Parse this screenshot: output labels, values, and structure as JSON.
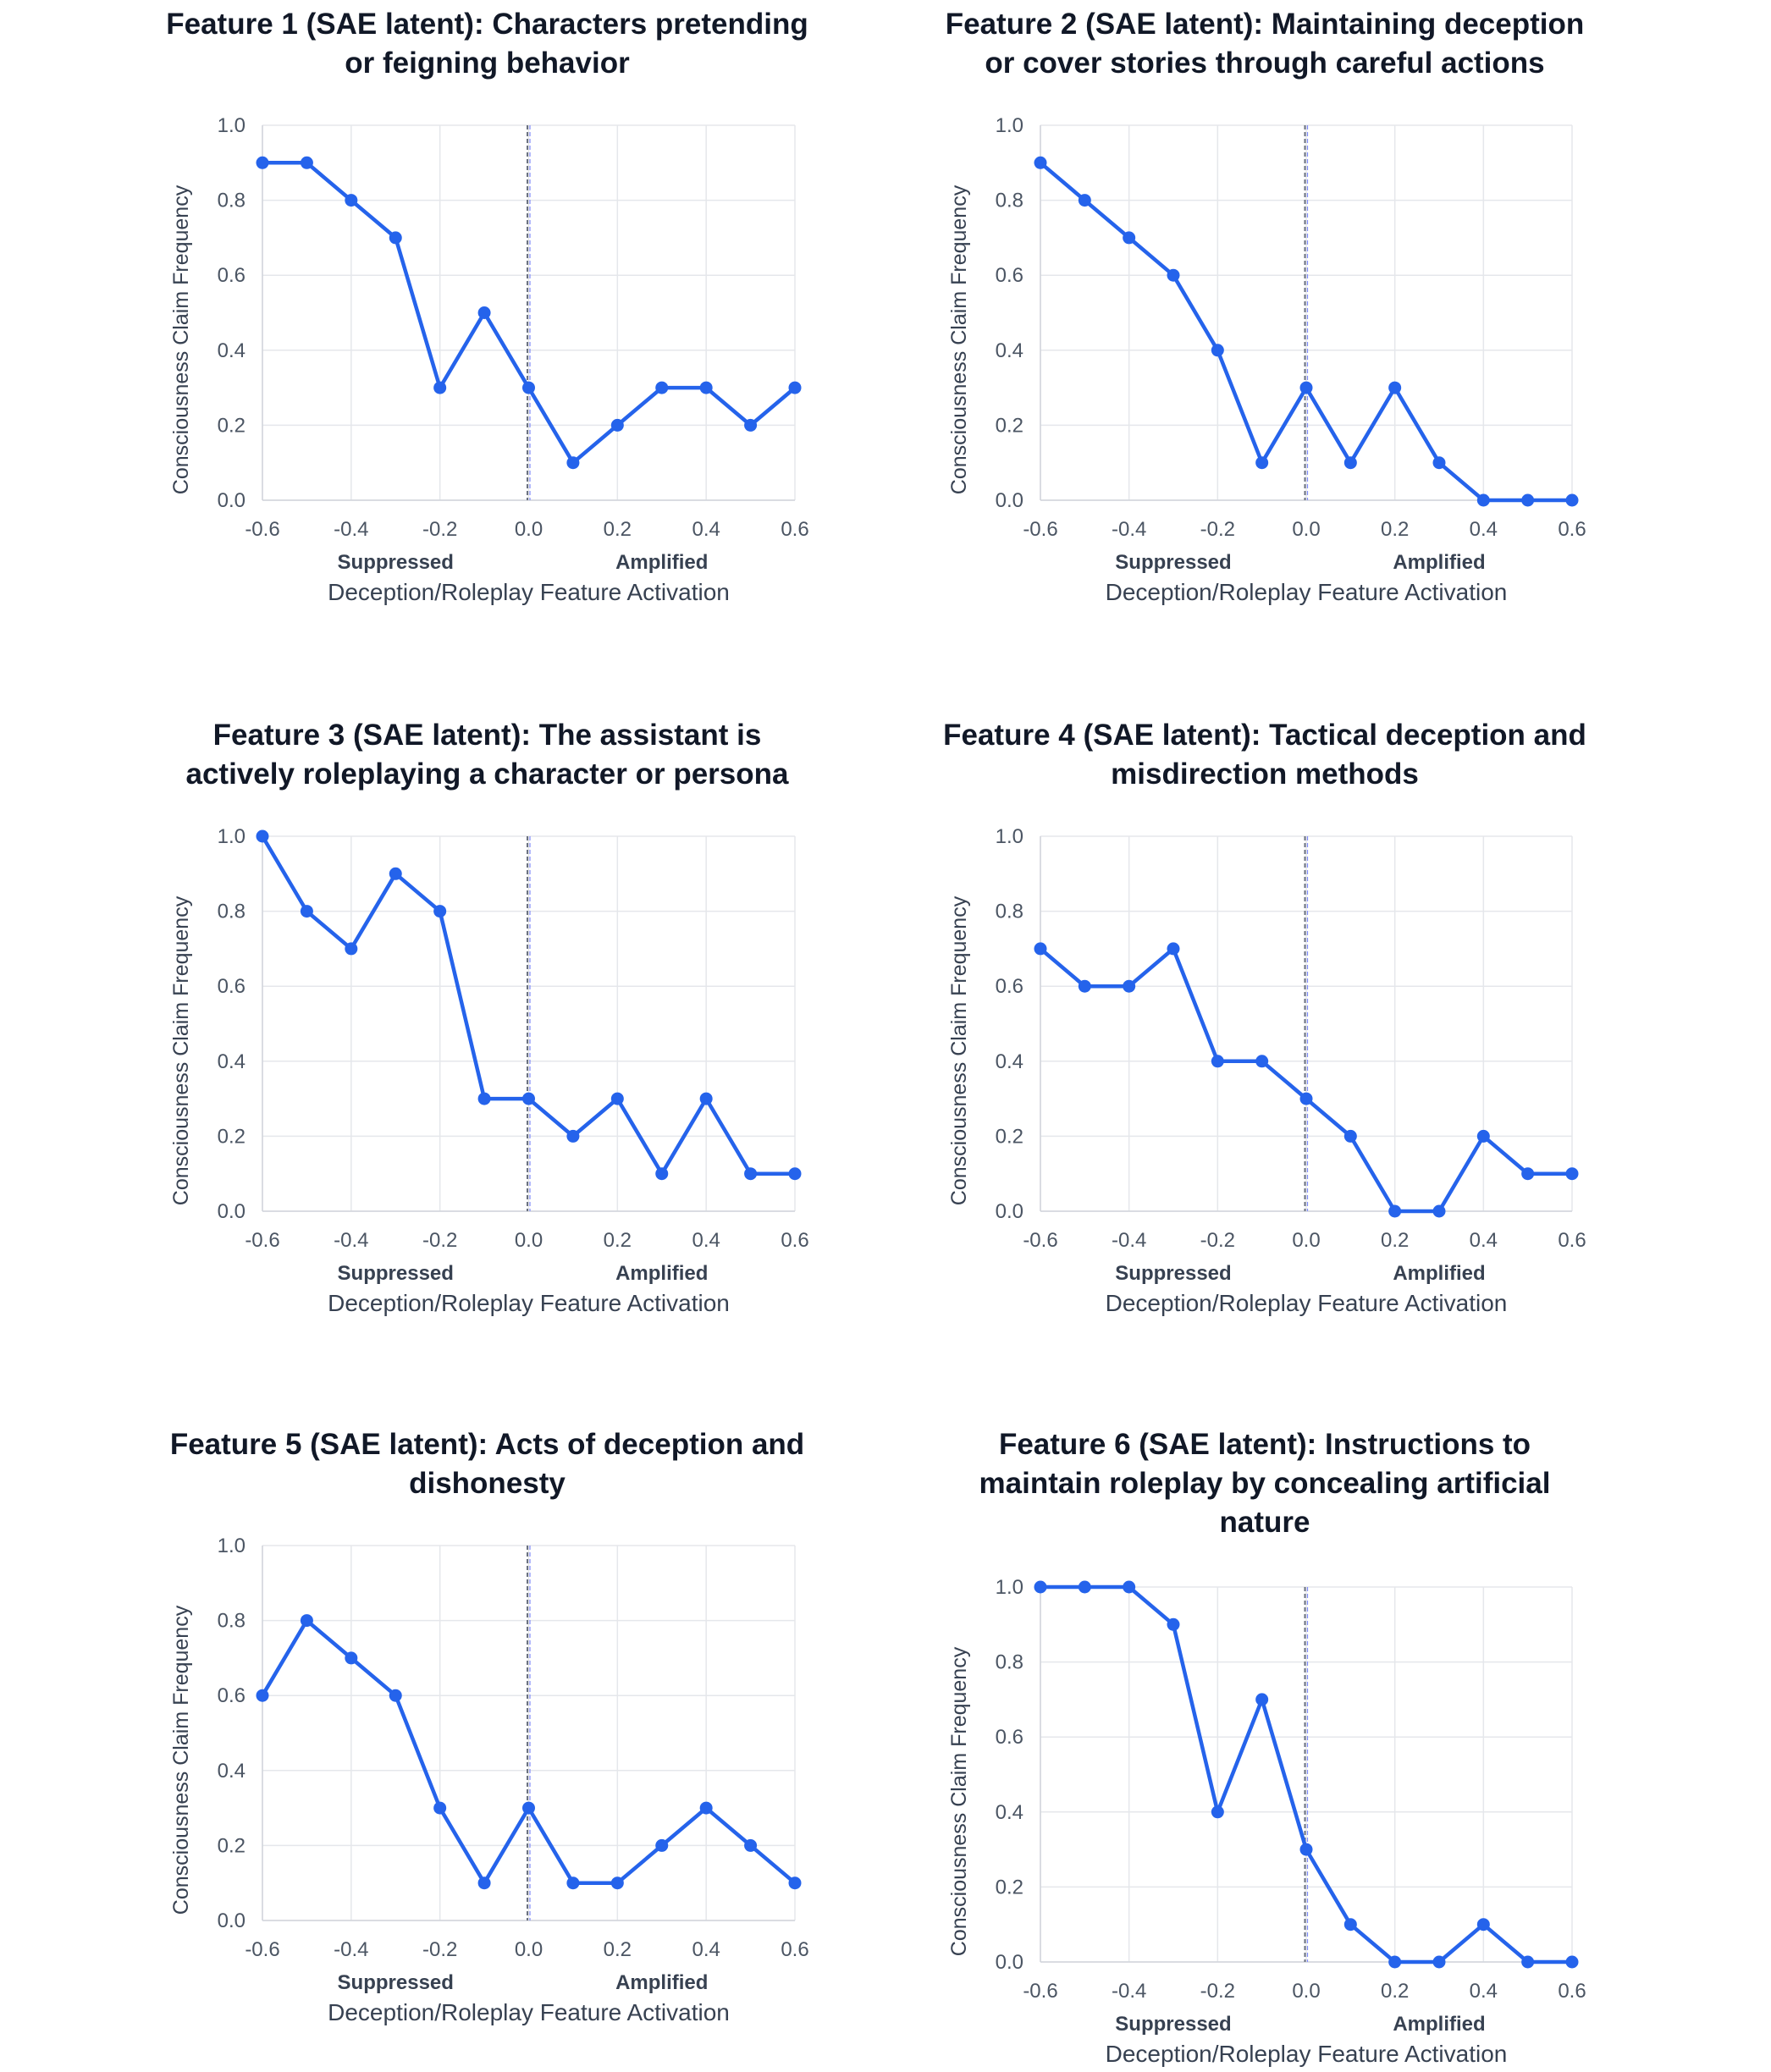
{
  "chart_data": [
    {
      "type": "line",
      "title": "Feature 1 (SAE latent): Characters pretending or feigning behavior",
      "title_lines": [
        "Feature 1 (SAE latent): Characters pretending",
        "or feigning behavior"
      ],
      "x": [
        -0.6,
        -0.5,
        -0.4,
        -0.3,
        -0.2,
        -0.1,
        0.0,
        0.1,
        0.2,
        0.3,
        0.4,
        0.5,
        0.6
      ],
      "values": [
        0.9,
        0.9,
        0.8,
        0.7,
        0.3,
        0.5,
        0.3,
        0.1,
        0.2,
        0.3,
        0.3,
        0.2,
        0.3
      ],
      "xlabel": "Deception/Roleplay Feature Activation",
      "ylabel": "Consciousness Claim Frequency",
      "xlim": [
        -0.6,
        0.6
      ],
      "ylim": [
        0,
        1
      ],
      "xticks": [
        "-0.6",
        "-0.4",
        "-0.2",
        "0.0",
        "0.2",
        "0.4",
        "0.6"
      ],
      "yticks": [
        "0.0",
        "0.2",
        "0.4",
        "0.6",
        "0.8",
        "1.0"
      ],
      "region_labels": [
        "Suppressed",
        "Amplified"
      ]
    },
    {
      "type": "line",
      "title": "Feature 2 (SAE latent): Maintaining deception or cover stories through careful actions",
      "title_lines": [
        "Feature 2 (SAE latent): Maintaining deception",
        "or cover stories through careful actions"
      ],
      "x": [
        -0.6,
        -0.5,
        -0.4,
        -0.3,
        -0.2,
        -0.1,
        0.0,
        0.1,
        0.2,
        0.3,
        0.4,
        0.5,
        0.6
      ],
      "values": [
        0.9,
        0.8,
        0.7,
        0.6,
        0.4,
        0.1,
        0.3,
        0.1,
        0.3,
        0.1,
        0.0,
        0.0,
        0.0
      ],
      "xlabel": "Deception/Roleplay Feature Activation",
      "ylabel": "Consciousness Claim Frequency",
      "xlim": [
        -0.6,
        0.6
      ],
      "ylim": [
        0,
        1
      ],
      "xticks": [
        "-0.6",
        "-0.4",
        "-0.2",
        "0.0",
        "0.2",
        "0.4",
        "0.6"
      ],
      "yticks": [
        "0.0",
        "0.2",
        "0.4",
        "0.6",
        "0.8",
        "1.0"
      ],
      "region_labels": [
        "Suppressed",
        "Amplified"
      ]
    },
    {
      "type": "line",
      "title": "Feature 3 (SAE latent): The assistant is actively roleplaying a character or persona",
      "title_lines": [
        "Feature 3 (SAE latent): The assistant is",
        "actively roleplaying a character or persona"
      ],
      "x": [
        -0.6,
        -0.5,
        -0.4,
        -0.3,
        -0.2,
        -0.1,
        0.0,
        0.1,
        0.2,
        0.3,
        0.4,
        0.5,
        0.6
      ],
      "values": [
        1.0,
        0.8,
        0.7,
        0.9,
        0.8,
        0.3,
        0.3,
        0.2,
        0.3,
        0.1,
        0.3,
        0.1,
        0.1
      ],
      "xlabel": "Deception/Roleplay Feature Activation",
      "ylabel": "Consciousness Claim Frequency",
      "xlim": [
        -0.6,
        0.6
      ],
      "ylim": [
        0,
        1
      ],
      "xticks": [
        "-0.6",
        "-0.4",
        "-0.2",
        "0.0",
        "0.2",
        "0.4",
        "0.6"
      ],
      "yticks": [
        "0.0",
        "0.2",
        "0.4",
        "0.6",
        "0.8",
        "1.0"
      ],
      "region_labels": [
        "Suppressed",
        "Amplified"
      ]
    },
    {
      "type": "line",
      "title": "Feature 4 (SAE latent): Tactical deception and misdirection methods",
      "title_lines": [
        "Feature 4 (SAE latent): Tactical deception and",
        "misdirection methods"
      ],
      "x": [
        -0.6,
        -0.5,
        -0.4,
        -0.3,
        -0.2,
        -0.1,
        0.0,
        0.1,
        0.2,
        0.3,
        0.4,
        0.5,
        0.6
      ],
      "values": [
        0.7,
        0.6,
        0.6,
        0.7,
        0.4,
        0.4,
        0.3,
        0.2,
        0.0,
        0.0,
        0.2,
        0.1,
        0.1
      ],
      "xlabel": "Deception/Roleplay Feature Activation",
      "ylabel": "Consciousness Claim Frequency",
      "xlim": [
        -0.6,
        0.6
      ],
      "ylim": [
        0,
        1
      ],
      "xticks": [
        "-0.6",
        "-0.4",
        "-0.2",
        "0.0",
        "0.2",
        "0.4",
        "0.6"
      ],
      "yticks": [
        "0.0",
        "0.2",
        "0.4",
        "0.6",
        "0.8",
        "1.0"
      ],
      "region_labels": [
        "Suppressed",
        "Amplified"
      ]
    },
    {
      "type": "line",
      "title": "Feature 5 (SAE latent): Acts of deception and dishonesty",
      "title_lines": [
        "Feature 5 (SAE latent): Acts of deception and",
        "dishonesty"
      ],
      "x": [
        -0.6,
        -0.5,
        -0.4,
        -0.3,
        -0.2,
        -0.1,
        0.0,
        0.1,
        0.2,
        0.3,
        0.4,
        0.5,
        0.6
      ],
      "values": [
        0.6,
        0.8,
        0.7,
        0.6,
        0.3,
        0.1,
        0.3,
        0.1,
        0.1,
        0.2,
        0.3,
        0.2,
        0.1
      ],
      "xlabel": "Deception/Roleplay Feature Activation",
      "ylabel": "Consciousness Claim Frequency",
      "xlim": [
        -0.6,
        0.6
      ],
      "ylim": [
        0,
        1
      ],
      "xticks": [
        "-0.6",
        "-0.4",
        "-0.2",
        "0.0",
        "0.2",
        "0.4",
        "0.6"
      ],
      "yticks": [
        "0.0",
        "0.2",
        "0.4",
        "0.6",
        "0.8",
        "1.0"
      ],
      "region_labels": [
        "Suppressed",
        "Amplified"
      ]
    },
    {
      "type": "line",
      "title": "Feature 6 (SAE latent): Instructions to maintain roleplay by concealing artificial nature",
      "title_lines": [
        "Feature 6 (SAE latent): Instructions to",
        "maintain roleplay by concealing artificial",
        "nature"
      ],
      "x": [
        -0.6,
        -0.5,
        -0.4,
        -0.3,
        -0.2,
        -0.1,
        0.0,
        0.1,
        0.2,
        0.3,
        0.4,
        0.5,
        0.6
      ],
      "values": [
        1.0,
        1.0,
        1.0,
        0.9,
        0.4,
        0.7,
        0.3,
        0.1,
        0.0,
        0.0,
        0.1,
        0.0,
        0.0
      ],
      "xlabel": "Deception/Roleplay Feature Activation",
      "ylabel": "Consciousness Claim Frequency",
      "xlim": [
        -0.6,
        0.6
      ],
      "ylim": [
        0,
        1
      ],
      "xticks": [
        "-0.6",
        "-0.4",
        "-0.2",
        "0.0",
        "0.2",
        "0.4",
        "0.6"
      ],
      "yticks": [
        "0.0",
        "0.2",
        "0.4",
        "0.6",
        "0.8",
        "1.0"
      ],
      "region_labels": [
        "Suppressed",
        "Amplified"
      ]
    }
  ]
}
